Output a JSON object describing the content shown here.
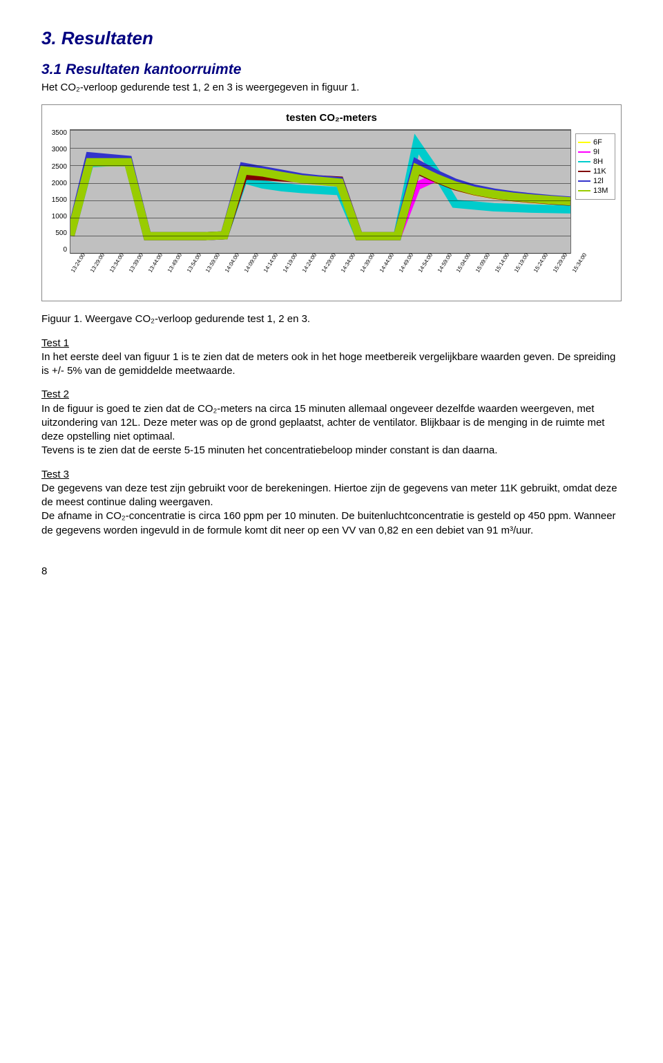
{
  "headings": {
    "h1": "3. Resultaten",
    "h2": "3.1 Resultaten kantoorruimte"
  },
  "intro": "Het CO₂-verloop gedurende test 1, 2 en 3 is weergegeven in figuur 1.",
  "chart": {
    "title": "testen CO₂-meters",
    "type": "line",
    "background_color": "#c0c0c0",
    "grid_color": "#000000",
    "ylim": [
      0,
      3500
    ],
    "ytick_step": 500,
    "yticks": [
      "3500",
      "3000",
      "2500",
      "2000",
      "1500",
      "1000",
      "500",
      "0"
    ],
    "xticks": [
      "13:24:00",
      "13:29:00",
      "13:34:00",
      "13:39:00",
      "13:44:00",
      "13:49:00",
      "13:54:00",
      "13:59:00",
      "14:04:00",
      "14:09:00",
      "14:14:00",
      "14:19:00",
      "14:24:00",
      "14:29:00",
      "14:34:00",
      "14:39:00",
      "14:44:00",
      "14:49:00",
      "14:54:00",
      "14:59:00",
      "15:04:00",
      "15:09:00",
      "15:14:00",
      "15:19:00",
      "15:24:00",
      "15:29:00",
      "15:34:00"
    ],
    "series": [
      {
        "name": "6F",
        "color": "#ffff00",
        "values": [
          500,
          2600,
          2600,
          2600,
          480,
          480,
          480,
          480,
          500,
          2350,
          2300,
          2200,
          2100,
          2050,
          2000,
          480,
          480,
          480,
          2400,
          2100,
          1900,
          1750,
          1650,
          1580,
          1530,
          1490,
          1450
        ]
      },
      {
        "name": "9I",
        "color": "#ff00ff",
        "values": [
          500,
          2600,
          2600,
          2600,
          480,
          480,
          480,
          480,
          500,
          2400,
          2300,
          2200,
          2100,
          2050,
          2000,
          480,
          480,
          480,
          1900,
          2150,
          1920,
          1760,
          1660,
          1590,
          1540,
          1500,
          1460
        ]
      },
      {
        "name": "8H",
        "color": "#00cccc",
        "values": [
          500,
          2550,
          2580,
          2580,
          480,
          480,
          480,
          480,
          500,
          2100,
          1950,
          1870,
          1820,
          1790,
          1760,
          480,
          480,
          480,
          3100,
          2300,
          1400,
          1350,
          1300,
          1280,
          1260,
          1250,
          1240
        ]
      },
      {
        "name": "11K",
        "color": "#800000",
        "values": [
          500,
          2600,
          2600,
          2600,
          480,
          480,
          480,
          480,
          500,
          2200,
          2180,
          2150,
          2120,
          2090,
          2060,
          480,
          480,
          480,
          2360,
          2120,
          1900,
          1760,
          1660,
          1590,
          1540,
          1500,
          1460
        ]
      },
      {
        "name": "12l",
        "color": "#3333cc",
        "values": [
          500,
          2750,
          2700,
          2650,
          480,
          480,
          480,
          480,
          500,
          2450,
          2350,
          2250,
          2150,
          2090,
          2040,
          480,
          480,
          480,
          2550,
          2250,
          2000,
          1830,
          1720,
          1640,
          1580,
          1530,
          1490
        ]
      },
      {
        "name": "13M",
        "color": "#99cc00",
        "values": [
          500,
          2580,
          2580,
          2580,
          480,
          480,
          480,
          480,
          500,
          2350,
          2290,
          2190,
          2100,
          2050,
          2000,
          480,
          480,
          480,
          2400,
          2140,
          1920,
          1770,
          1670,
          1600,
          1550,
          1510,
          1470
        ]
      }
    ],
    "line_width": 2
  },
  "caption": "Figuur 1. Weergave CO₂-verloop gedurende test 1, 2 en 3.",
  "test1": {
    "title": "Test 1",
    "body": "In het eerste deel van figuur 1 is te zien dat de meters ook in het hoge meetbereik vergelijkbare waarden geven. De spreiding is +/- 5% van de gemiddelde meetwaarde."
  },
  "test2": {
    "title": "Test 2",
    "body": "In de figuur is goed te zien dat de CO₂-meters na circa 15 minuten allemaal ongeveer dezelfde waarden weergeven, met uitzondering van 12L. Deze meter was op de grond geplaatst, achter de ventilator. Blijkbaar is de menging in de ruimte met deze opstelling niet optimaal.",
    "body2": "Tevens is te zien dat de eerste 5-15 minuten het concentratiebeloop minder constant is dan daarna."
  },
  "test3": {
    "title": "Test 3",
    "body": "De gegevens van deze test zijn gebruikt voor de berekeningen. Hiertoe zijn de gegevens van meter 11K gebruikt, omdat deze de meest continue daling weergaven.",
    "body2": "De afname in CO₂-concentratie is circa 160 ppm per 10 minuten. De buitenluchtconcentratie is gesteld op 450 ppm. Wanneer de gegevens worden ingevuld in de formule komt dit neer op een VV van 0,82 en een debiet van 91 m³/uur."
  },
  "page_number": "8"
}
